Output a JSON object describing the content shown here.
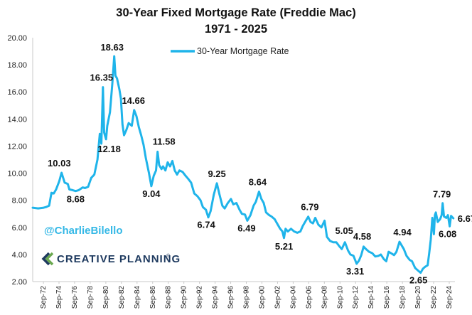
{
  "colors": {
    "series": "#1fb4ea",
    "axis": "#c8c8c8",
    "text": "#111111",
    "handle": "#34b8e6",
    "brand": "#1e3a5f",
    "logo_green": "#6aa84f"
  },
  "chart_data": {
    "type": "line",
    "title": "30-Year Fixed Mortgage Rate (Freddie Mac)",
    "subtitle": "1971 - 2025",
    "legend": "top-center",
    "grid": false,
    "ylim": [
      2.0,
      20.0
    ],
    "yticks": [
      "2.00",
      "4.00",
      "6.00",
      "8.00",
      "10.00",
      "12.00",
      "14.00",
      "16.00",
      "18.00",
      "20.00"
    ],
    "xticks": [
      "Sep-72",
      "Sep-74",
      "Sep-76",
      "Sep-78",
      "Sep-80",
      "Sep-82",
      "Sep-84",
      "Sep-86",
      "Sep-88",
      "Sep-90",
      "Sep-92",
      "Sep-94",
      "Sep-96",
      "Sep-98",
      "Sep-00",
      "Sep-02",
      "Sep-04",
      "Sep-06",
      "Sep-08",
      "Sep-10",
      "Sep-12",
      "Sep-14",
      "Sep-16",
      "Sep-18",
      "Sep-20",
      "Sep-22",
      "Sep-24"
    ],
    "series": [
      {
        "name": "30-Year Mortgage Rate",
        "x": [
          1971.3,
          1972.0,
          1972.7,
          1973.0,
          1973.4,
          1973.7,
          1974.0,
          1974.3,
          1974.7,
          1975.0,
          1975.4,
          1975.8,
          1976.0,
          1976.4,
          1976.8,
          1977.2,
          1977.7,
          1978.0,
          1978.4,
          1978.8,
          1979.2,
          1979.6,
          1979.9,
          1980.1,
          1980.3,
          1980.45,
          1980.7,
          1980.85,
          1981.2,
          1981.5,
          1981.75,
          1981.9,
          1982.1,
          1982.4,
          1982.6,
          1982.8,
          1983.0,
          1983.3,
          1983.6,
          1984.0,
          1984.3,
          1984.6,
          1984.9,
          1985.2,
          1985.5,
          1985.8,
          1986.2,
          1986.5,
          1986.8,
          1987.1,
          1987.3,
          1987.5,
          1987.8,
          1988.0,
          1988.3,
          1988.6,
          1988.9,
          1989.2,
          1989.5,
          1989.8,
          1990.1,
          1990.5,
          1990.9,
          1991.2,
          1991.6,
          1992.0,
          1992.4,
          1992.8,
          1993.1,
          1993.5,
          1993.8,
          1994.1,
          1994.5,
          1994.9,
          1995.2,
          1995.6,
          1995.9,
          1996.3,
          1996.7,
          1997.0,
          1997.4,
          1997.8,
          1998.1,
          1998.5,
          1998.8,
          1999.2,
          1999.6,
          1999.9,
          2000.3,
          2000.6,
          2000.9,
          2001.2,
          2001.6,
          2001.9,
          2002.3,
          2002.7,
          2003.0,
          2003.3,
          2003.5,
          2003.7,
          2004.0,
          2004.4,
          2004.8,
          2005.2,
          2005.6,
          2005.9,
          2006.3,
          2006.6,
          2006.9,
          2007.2,
          2007.5,
          2007.9,
          2008.3,
          2008.7,
          2009.0,
          2009.4,
          2009.8,
          2010.2,
          2010.6,
          2010.9,
          2011.3,
          2011.7,
          2012.0,
          2012.4,
          2012.8,
          2013.1,
          2013.4,
          2013.7,
          2014.0,
          2014.4,
          2014.8,
          2015.2,
          2015.6,
          2015.9,
          2016.3,
          2016.6,
          2016.9,
          2017.2,
          2017.6,
          2017.9,
          2018.3,
          2018.85,
          2019.2,
          2019.6,
          2019.9,
          2020.3,
          2020.7,
          2021.0,
          2021.3,
          2021.6,
          2021.9,
          2022.1,
          2022.3,
          2022.5,
          2022.7,
          2022.83,
          2022.95,
          2023.2,
          2023.5,
          2023.7,
          2023.82,
          2024.0,
          2024.3,
          2024.5,
          2024.73,
          2024.9,
          2025.2
        ],
        "values": [
          7.45,
          7.4,
          7.45,
          7.5,
          7.6,
          8.55,
          8.5,
          8.8,
          9.4,
          10.03,
          9.3,
          9.2,
          8.8,
          8.75,
          8.68,
          8.75,
          8.95,
          8.9,
          9.0,
          9.65,
          9.9,
          11.0,
          12.9,
          12.18,
          16.35,
          13.0,
          12.5,
          13.5,
          14.5,
          16.6,
          18.63,
          17.2,
          17.0,
          16.2,
          15.5,
          13.6,
          12.8,
          13.2,
          13.7,
          13.5,
          14.66,
          14.2,
          13.4,
          12.8,
          12.1,
          11.1,
          10.0,
          9.04,
          9.8,
          10.2,
          11.58,
          10.6,
          10.3,
          10.5,
          10.2,
          10.8,
          10.5,
          10.9,
          10.2,
          9.9,
          10.2,
          10.1,
          9.8,
          9.6,
          9.3,
          8.5,
          8.3,
          8.0,
          7.5,
          7.3,
          6.74,
          7.2,
          8.4,
          9.25,
          8.5,
          7.6,
          7.4,
          7.8,
          8.1,
          7.7,
          7.8,
          7.3,
          7.0,
          6.95,
          6.49,
          6.9,
          7.6,
          7.9,
          8.64,
          8.1,
          7.8,
          7.1,
          6.9,
          6.8,
          6.6,
          6.2,
          5.9,
          5.7,
          5.21,
          5.9,
          5.7,
          5.9,
          5.7,
          5.6,
          5.7,
          6.1,
          6.5,
          6.79,
          6.4,
          6.3,
          6.7,
          6.2,
          6.0,
          6.5,
          5.3,
          5.0,
          4.9,
          4.9,
          4.6,
          4.4,
          4.9,
          4.3,
          4.0,
          3.9,
          3.31,
          3.55,
          3.95,
          4.58,
          4.4,
          4.2,
          4.1,
          3.85,
          3.9,
          4.0,
          3.65,
          3.5,
          4.2,
          4.1,
          3.95,
          4.2,
          4.94,
          4.4,
          3.9,
          3.6,
          3.5,
          3.0,
          2.8,
          2.65,
          2.95,
          3.1,
          3.2,
          4.1,
          5.1,
          6.7,
          5.5,
          6.9,
          7.1,
          6.4,
          6.6,
          6.9,
          7.79,
          6.8,
          6.7,
          6.9,
          6.08,
          6.85,
          6.67
        ]
      }
    ],
    "annotations": [
      {
        "text": "10.03",
        "x": 1974.7,
        "y": 10.03
      },
      {
        "text": "8.68",
        "x": 1976.8,
        "y": 8.68
      },
      {
        "text": "16.35",
        "x": 1980.3,
        "y": 16.35
      },
      {
        "text": "12.18",
        "x": 1980.1,
        "y": 12.18
      },
      {
        "text": "18.63",
        "x": 1981.75,
        "y": 18.63
      },
      {
        "text": "14.66",
        "x": 1984.3,
        "y": 14.66
      },
      {
        "text": "11.58",
        "x": 1987.3,
        "y": 11.58
      },
      {
        "text": "9.04",
        "x": 1986.5,
        "y": 9.04
      },
      {
        "text": "9.25",
        "x": 1994.9,
        "y": 9.25
      },
      {
        "text": "6.74",
        "x": 1993.8,
        "y": 6.74
      },
      {
        "text": "8.64",
        "x": 2000.3,
        "y": 8.64
      },
      {
        "text": "6.49",
        "x": 1998.8,
        "y": 6.49
      },
      {
        "text": "5.21",
        "x": 2003.5,
        "y": 5.21
      },
      {
        "text": "6.79",
        "x": 2006.9,
        "y": 6.79
      },
      {
        "text": "5.05",
        "x": 2011.3,
        "y": 5.05
      },
      {
        "text": "4.58",
        "x": 2013.7,
        "y": 4.58
      },
      {
        "text": "3.31",
        "x": 2012.8,
        "y": 3.31
      },
      {
        "text": "4.94",
        "x": 2018.85,
        "y": 4.94
      },
      {
        "text": "2.65",
        "x": 2021.0,
        "y": 2.65
      },
      {
        "text": "7.79",
        "x": 2023.82,
        "y": 7.79
      },
      {
        "text": "6.08",
        "x": 2024.73,
        "y": 6.08
      },
      {
        "text": "6.67",
        "x": 2025.2,
        "y": 6.67
      }
    ]
  },
  "watermark": {
    "handle": "@CharlieBilello",
    "brand": "CREATIVE PLANNING",
    "brand_mark": "®"
  }
}
